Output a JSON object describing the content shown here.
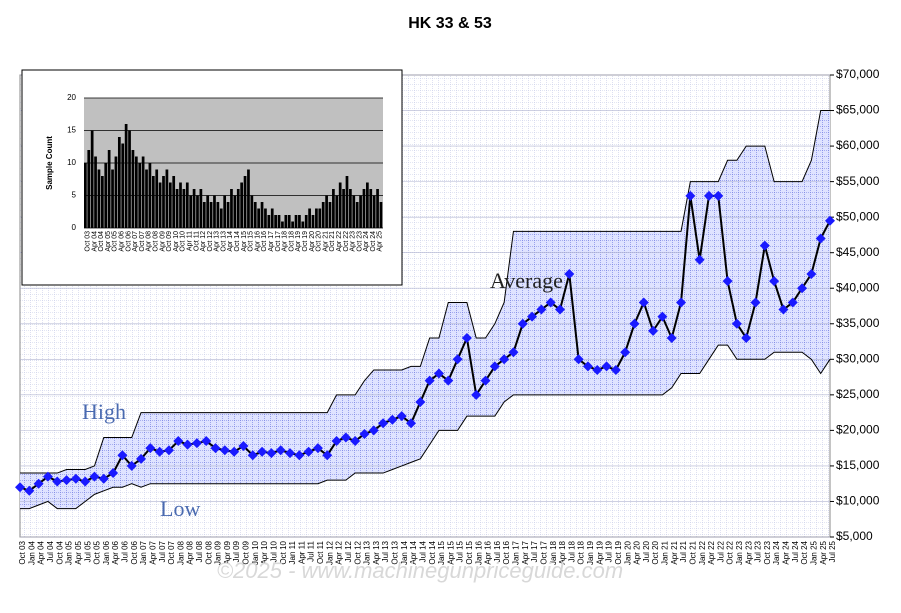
{
  "chart_data": [
    {
      "type": "line",
      "title": "HK 33 & 53",
      "categories": [
        "Oct 03",
        "Jan 04",
        "Apr 04",
        "Jul 04",
        "Oct 04",
        "Jan 05",
        "Apr 05",
        "Jul 05",
        "Oct 05",
        "Jan 06",
        "Apr 06",
        "Jul 06",
        "Oct 06",
        "Jan 07",
        "Apr 07",
        "Jul 07",
        "Oct 07",
        "Jan 08",
        "Apr 08",
        "Jul 08",
        "Oct 08",
        "Jan 09",
        "Apr 09",
        "Jul 09",
        "Oct 09",
        "Jan 10",
        "Apr 10",
        "Jul 10",
        "Oct 10",
        "Jan 11",
        "Apr 11",
        "Jul 11",
        "Oct 11",
        "Jan 12",
        "Apr 12",
        "Jul 12",
        "Oct 12",
        "Jan 13",
        "Apr 13",
        "Jul 13",
        "Oct 13",
        "Jan 14",
        "Apr 14",
        "Jul 14",
        "Oct 14",
        "Jan 15",
        "Apr 15",
        "Jul 15",
        "Oct 15",
        "Jan 16",
        "Apr 16",
        "Jul 16",
        "Oct 16",
        "Jan 17",
        "Apr 17",
        "Jul 17",
        "Oct 17",
        "Jan 18",
        "Apr 18",
        "Jul 18",
        "Oct 18",
        "Jan 19",
        "Apr 19",
        "Jul 19",
        "Oct 19",
        "Jan 20",
        "Apr 20",
        "Jul 20",
        "Oct 20",
        "Jan 21",
        "Apr 21",
        "Jul 21",
        "Oct 21",
        "Jan 22",
        "Apr 22",
        "Jul 22",
        "Oct 22",
        "Jan 23",
        "Apr 23",
        "Jul 23",
        "Oct 23",
        "Jan 24",
        "Apr 24",
        "Jul 24",
        "Oct 24",
        "Jan 25",
        "Apr 25",
        "Jul 25"
      ],
      "series": [
        {
          "name": "Average",
          "color": "#1a1aff",
          "values": [
            12000,
            11500,
            12500,
            13500,
            12800,
            13000,
            13200,
            12800,
            13500,
            13200,
            14000,
            16500,
            15000,
            16000,
            17500,
            17000,
            17200,
            18500,
            18000,
            18200,
            18500,
            17500,
            17200,
            17000,
            17800,
            16500,
            17000,
            16800,
            17200,
            16800,
            16500,
            17000,
            17500,
            16500,
            18500,
            19000,
            18500,
            19500,
            20000,
            21000,
            21500,
            22000,
            21000,
            24000,
            27000,
            28000,
            27000,
            30000,
            33000,
            25000,
            27000,
            29000,
            30000,
            31000,
            35000,
            36000,
            37000,
            38000,
            37000,
            42000,
            30000,
            29000,
            28500,
            29000,
            28500,
            31000,
            35000,
            38000,
            34000,
            36000,
            33000,
            38000,
            53000,
            44000,
            53000,
            53000,
            41000,
            35000,
            33000,
            38000,
            46000,
            41000,
            37000,
            38000,
            40000,
            42000,
            47000,
            49500
          ]
        },
        {
          "name": "High",
          "color": "#000000",
          "values": [
            14000,
            14000,
            14000,
            14000,
            14000,
            14500,
            14500,
            14500,
            15000,
            19000,
            19000,
            19000,
            19000,
            22500,
            22500,
            22500,
            22500,
            22500,
            22500,
            22500,
            22500,
            22500,
            22500,
            22500,
            22500,
            22500,
            22500,
            22500,
            22500,
            22500,
            22500,
            22500,
            22500,
            22500,
            25000,
            25000,
            25000,
            27000,
            28500,
            28500,
            28500,
            28500,
            29000,
            29000,
            33000,
            33000,
            38000,
            38000,
            38000,
            33000,
            33000,
            35000,
            38000,
            48000,
            48000,
            48000,
            48000,
            48000,
            48000,
            48000,
            48000,
            48000,
            48000,
            48000,
            48000,
            48000,
            48000,
            48000,
            48000,
            48000,
            48000,
            48000,
            55000,
            55000,
            55000,
            55000,
            58000,
            58000,
            60000,
            60000,
            60000,
            55000,
            55000,
            55000,
            55000,
            58000,
            65000,
            65000
          ]
        },
        {
          "name": "Low",
          "color": "#000000",
          "values": [
            9000,
            9000,
            9500,
            10000,
            9000,
            9000,
            9000,
            10000,
            11000,
            11500,
            12000,
            12000,
            12500,
            12000,
            12500,
            12500,
            12500,
            12500,
            12500,
            12500,
            12500,
            12500,
            12500,
            12500,
            12500,
            12500,
            12500,
            12500,
            12500,
            12500,
            12500,
            12500,
            12500,
            13000,
            13000,
            13000,
            14000,
            14000,
            14000,
            14000,
            14500,
            15000,
            15500,
            16000,
            18000,
            20000,
            20000,
            20000,
            22000,
            22000,
            22000,
            22000,
            24000,
            25000,
            25000,
            25000,
            25000,
            25000,
            25000,
            25000,
            25000,
            25000,
            25000,
            25000,
            25000,
            25000,
            25000,
            25000,
            25000,
            25000,
            26000,
            28000,
            28000,
            28000,
            30000,
            32000,
            32000,
            30000,
            30000,
            30000,
            30000,
            31000,
            31000,
            31000,
            31000,
            30000,
            28000,
            30000
          ]
        }
      ],
      "ylim": [
        5000,
        70000
      ],
      "yticks": [
        {
          "value": 5000,
          "label": "$5,000"
        },
        {
          "value": 10000,
          "label": "$10,000"
        },
        {
          "value": 15000,
          "label": "$15,000"
        },
        {
          "value": 20000,
          "label": "$20,000"
        },
        {
          "value": 25000,
          "label": "$25,000"
        },
        {
          "value": 30000,
          "label": "$30,000"
        },
        {
          "value": 35000,
          "label": "$35,000"
        },
        {
          "value": 40000,
          "label": "$40,000"
        },
        {
          "value": 45000,
          "label": "$45,000"
        },
        {
          "value": 50000,
          "label": "$50,000"
        },
        {
          "value": 55000,
          "label": "$55,000"
        },
        {
          "value": 60000,
          "label": "$60,000"
        },
        {
          "value": 65000,
          "label": "$65,000"
        },
        {
          "value": 70000,
          "label": "$70,000"
        }
      ],
      "grid": true,
      "annotations": [
        "High",
        "Low",
        "Average"
      ],
      "watermark": "©2025 - www.machinegunpriceguide.com"
    },
    {
      "type": "bar",
      "ylabel": "Sample Count",
      "values": [
        10,
        12,
        15,
        11,
        9,
        8,
        10,
        12,
        9,
        11,
        14,
        13,
        16,
        15,
        12,
        11,
        10,
        11,
        9,
        10,
        8,
        9,
        7,
        8,
        9,
        7,
        8,
        6,
        7,
        6,
        7,
        5,
        6,
        5,
        6,
        4,
        5,
        4,
        5,
        4,
        3,
        5,
        4,
        6,
        5,
        6,
        7,
        8,
        9,
        5,
        4,
        3,
        4,
        3,
        2,
        3,
        2,
        2,
        1,
        2,
        2,
        1,
        2,
        2,
        1,
        2,
        3,
        2,
        3,
        3,
        4,
        5,
        4,
        6,
        5,
        7,
        6,
        8,
        6,
        5,
        4,
        5,
        6,
        7,
        6,
        5,
        6,
        4
      ],
      "color": "#000000",
      "ylim": [
        0,
        20
      ],
      "yticks": [
        0,
        5,
        10,
        15,
        20
      ],
      "grid": true
    }
  ]
}
